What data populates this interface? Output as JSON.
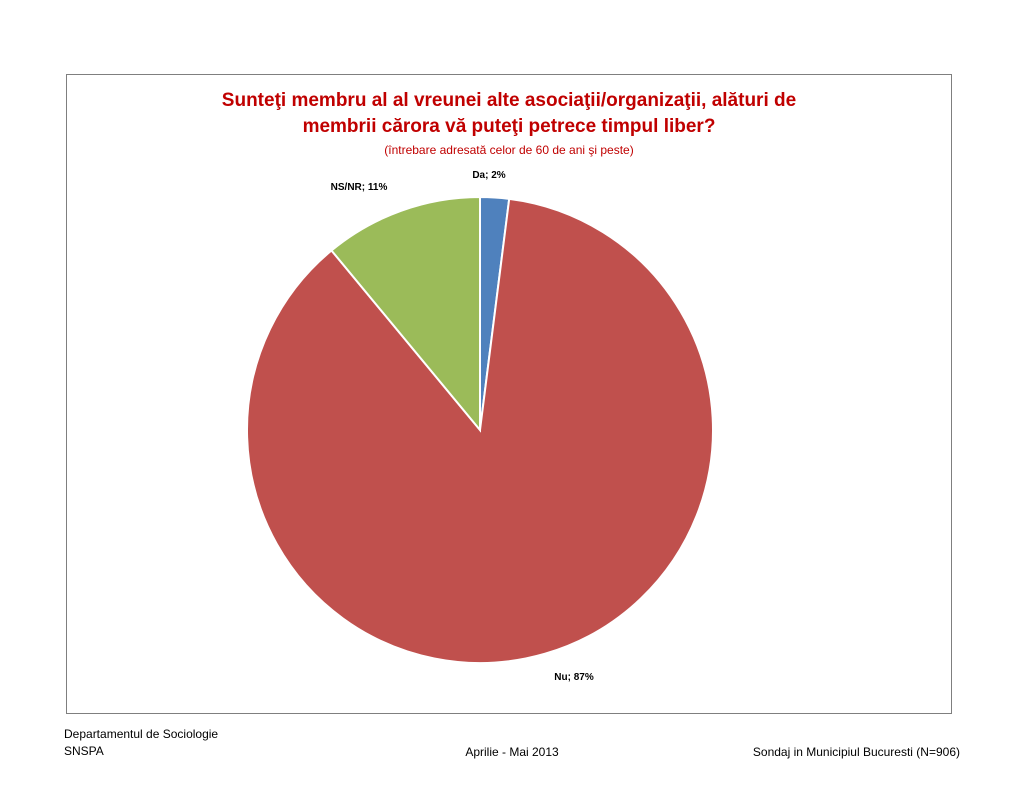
{
  "chart_data": {
    "type": "pie",
    "title_line1": "Sunteţi membru al al vreunei alte asociaţii/organizaţii,  alături de",
    "title_line2": "membrii cărora vă puteţi petrece timpul liber?",
    "subtitle": "(întrebare adresată celor de 60 de ani şi peste)",
    "slices": [
      {
        "name": "Da",
        "value": 2,
        "label": "Da; 2%",
        "color": "#4f81bd"
      },
      {
        "name": "Nu",
        "value": 87,
        "label": "Nu; 87%",
        "color": "#c0504d"
      },
      {
        "name": "NS/NR",
        "value": 11,
        "label": "NS/NR; 11%",
        "color": "#9bbb59"
      }
    ],
    "title_color": "#c00000",
    "label_placement": "outside"
  },
  "footer": {
    "dept_line1": "Departamentul de Sociologie",
    "dept_line2": "SNSPA",
    "period": "Aprilie - Mai 2013",
    "survey": "Sondaj in Municipiul Bucuresti (N=906)"
  }
}
